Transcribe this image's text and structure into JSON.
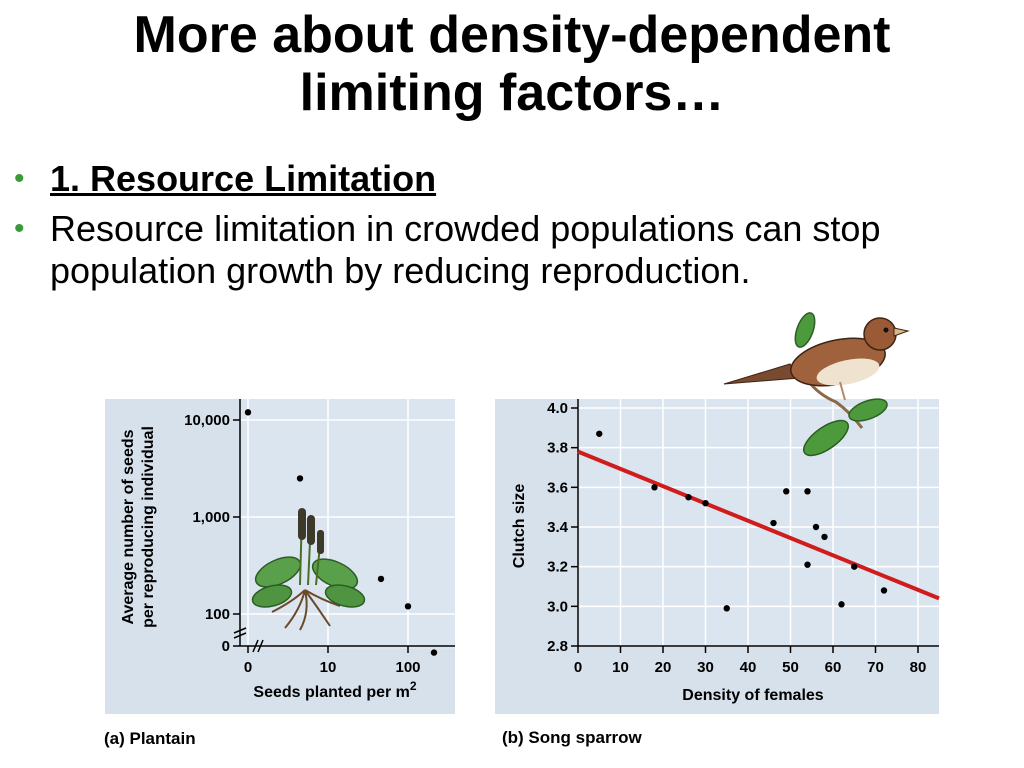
{
  "title": {
    "line1": "More about density-dependent",
    "line2": "limiting factors…"
  },
  "bullets": [
    {
      "text": "1. Resource Limitation",
      "style": "underlined-bold"
    },
    {
      "text": "Resource limitation in crowded populations can stop population growth by reducing reproduction.",
      "style": "normal"
    }
  ],
  "colors": {
    "panel_bg": "#d6e1ec",
    "bullet": "#3a9a3a",
    "trend_line": "#d01c1c"
  },
  "chart_data": [
    {
      "type": "scatter",
      "caption": "(a) Plantain",
      "xlabel": "Seeds planted per m",
      "xlabel_sup": "2",
      "ylabel_line1": "Average number of seeds",
      "ylabel_line2": "per reproducing individual",
      "y_scale": "log",
      "x_ticks": [
        "0",
        "10",
        "100"
      ],
      "y_ticks": [
        "10,000",
        "1,000",
        "100",
        "0"
      ],
      "points": [
        {
          "x": 0,
          "y": 12000
        },
        {
          "x": 5,
          "y": 2500
        },
        {
          "x": 50,
          "y": 230
        },
        {
          "x": 100,
          "y": 120
        },
        {
          "x": 200,
          "y": 40
        }
      ],
      "grid": true,
      "illustration": "plantain-plant"
    },
    {
      "type": "scatter",
      "caption": "(b) Song sparrow",
      "xlabel": "Density of females",
      "ylabel": "Clutch size",
      "xlim": [
        0,
        85
      ],
      "ylim": [
        2.8,
        4.0
      ],
      "x_ticks": [
        "0",
        "10",
        "20",
        "30",
        "40",
        "50",
        "60",
        "70",
        "80"
      ],
      "y_ticks": [
        "2.8",
        "3.0",
        "3.2",
        "3.4",
        "3.6",
        "3.8",
        "4.0"
      ],
      "points": [
        {
          "x": 5,
          "y": 3.87
        },
        {
          "x": 18,
          "y": 3.6
        },
        {
          "x": 26,
          "y": 3.55
        },
        {
          "x": 30,
          "y": 3.52
        },
        {
          "x": 35,
          "y": 2.99
        },
        {
          "x": 46,
          "y": 3.42
        },
        {
          "x": 49,
          "y": 3.58
        },
        {
          "x": 54,
          "y": 3.58
        },
        {
          "x": 54,
          "y": 3.21
        },
        {
          "x": 56,
          "y": 3.4
        },
        {
          "x": 58,
          "y": 3.35
        },
        {
          "x": 62,
          "y": 3.01
        },
        {
          "x": 65,
          "y": 3.2
        },
        {
          "x": 72,
          "y": 3.08
        }
      ],
      "trend_line": {
        "x": [
          0,
          86
        ],
        "y": [
          3.78,
          3.04
        ]
      },
      "grid": true,
      "illustration": "song-sparrow"
    }
  ]
}
